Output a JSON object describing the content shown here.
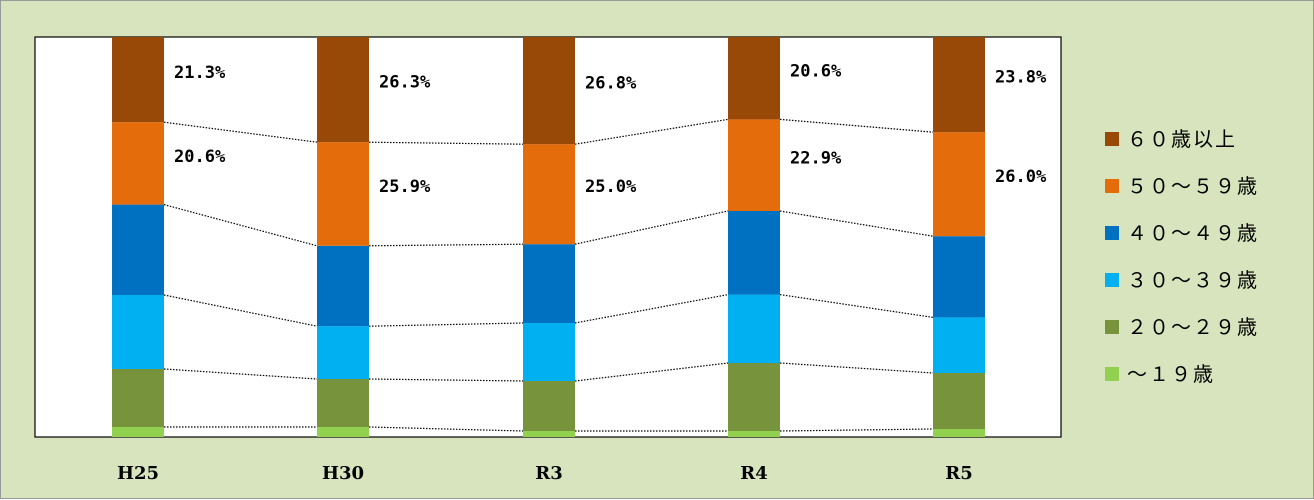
{
  "chart_data": {
    "type": "bar",
    "stacked": true,
    "normalized_percent": true,
    "categories": [
      "H25",
      "H30",
      "R3",
      "R4",
      "R5"
    ],
    "series": [
      {
        "name": "～１９歳",
        "color": "#92d050",
        "values": [
          2.5,
          2.5,
          1.5,
          1.5,
          2.0
        ]
      },
      {
        "name": "２０～２９歳",
        "color": "#77933c",
        "values": [
          14.5,
          12.0,
          12.5,
          17.0,
          14.0
        ]
      },
      {
        "name": "３０～３９歳",
        "color": "#00b0f0",
        "values": [
          18.5,
          13.2,
          14.5,
          17.1,
          13.9
        ]
      },
      {
        "name": "４０～４９歳",
        "color": "#0070c0",
        "values": [
          22.6,
          20.1,
          19.7,
          20.9,
          20.3
        ]
      },
      {
        "name": "５０～５９歳",
        "color": "#e46c0a",
        "values": [
          20.6,
          25.9,
          25.0,
          22.9,
          26.0
        ]
      },
      {
        "name": "６０歳以上",
        "color": "#984807",
        "values": [
          21.3,
          26.3,
          26.8,
          20.6,
          23.8
        ]
      }
    ],
    "data_labels": [
      {
        "series": "６０歳以上",
        "labels": [
          "21.3%",
          "26.3%",
          "26.8%",
          "20.6%",
          "23.8%"
        ]
      },
      {
        "series": "５０～５９歳",
        "labels": [
          "20.6%",
          "25.9%",
          "25.0%",
          "22.9%",
          "26.0%"
        ]
      }
    ],
    "ylim": [
      0,
      100
    ],
    "legend_position": "right",
    "series_connector_lines": true,
    "grid": false,
    "title": "",
    "xlabel": "",
    "ylabel": ""
  }
}
